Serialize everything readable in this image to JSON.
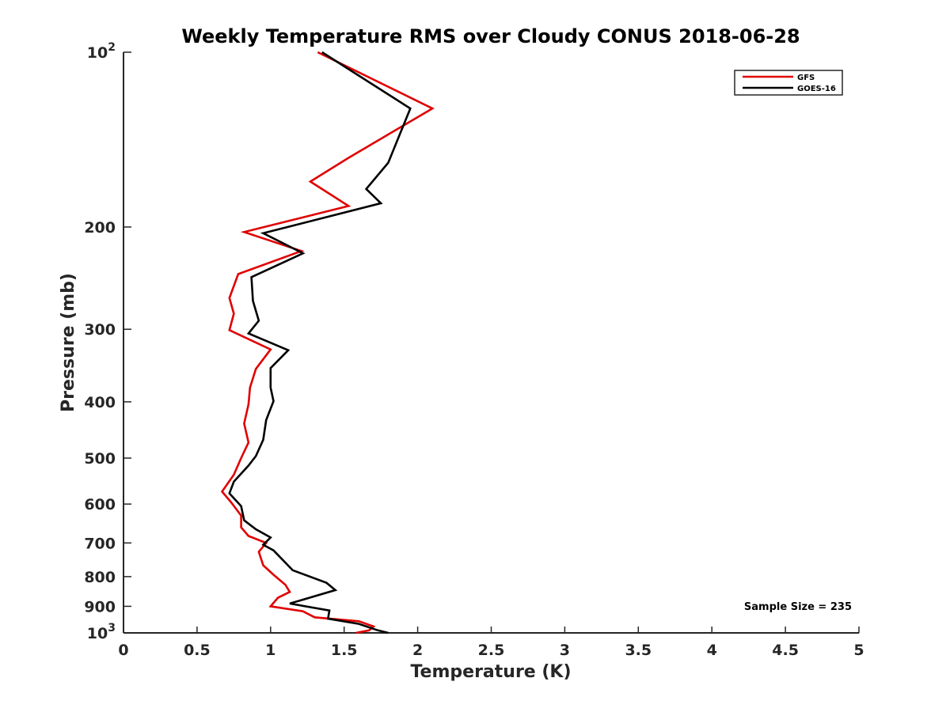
{
  "chart_data": {
    "type": "line",
    "title": "Weekly Temperature RMS over Cloudy CONUS 2018-06-28",
    "xlabel": "Temperature (K)",
    "ylabel": "Pressure (mb)",
    "xlim": [
      0,
      5
    ],
    "ylim": [
      100,
      1000
    ],
    "y_scale": "log",
    "y_reversed": true,
    "x_ticks": [
      "0",
      "0.5",
      "1",
      "1.5",
      "2",
      "2.5",
      "3",
      "3.5",
      "4",
      "4.5",
      "5"
    ],
    "y_ticks": [
      {
        "value": 100,
        "base": "10",
        "exp": "2"
      },
      {
        "value": 200,
        "label": "200"
      },
      {
        "value": 300,
        "label": "300"
      },
      {
        "value": 400,
        "label": "400"
      },
      {
        "value": 500,
        "label": "500"
      },
      {
        "value": 600,
        "label": "600"
      },
      {
        "value": 700,
        "label": "700"
      },
      {
        "value": 800,
        "label": "800"
      },
      {
        "value": 900,
        "label": "900"
      },
      {
        "value": 1000,
        "base": "10",
        "exp": "3"
      }
    ],
    "grid": false,
    "legend_position": "top-right",
    "annotation": "Sample Size = 235",
    "series": [
      {
        "name": "GFS",
        "color": "#e00000",
        "points": [
          [
            1.32,
            100
          ],
          [
            2.1,
            125
          ],
          [
            1.53,
            152
          ],
          [
            1.27,
            167
          ],
          [
            1.53,
            184
          ],
          [
            0.82,
            204
          ],
          [
            1.21,
            220
          ],
          [
            0.78,
            241
          ],
          [
            0.72,
            265
          ],
          [
            0.75,
            282
          ],
          [
            0.72,
            301
          ],
          [
            1.0,
            325
          ],
          [
            0.9,
            351
          ],
          [
            0.86,
            378
          ],
          [
            0.85,
            404
          ],
          [
            0.82,
            436
          ],
          [
            0.85,
            470
          ],
          [
            0.8,
            500
          ],
          [
            0.75,
            534
          ],
          [
            0.67,
            571
          ],
          [
            0.73,
            595
          ],
          [
            0.8,
            628
          ],
          [
            0.8,
            658
          ],
          [
            0.85,
            681
          ],
          [
            0.97,
            700
          ],
          [
            0.92,
            725
          ],
          [
            0.95,
            765
          ],
          [
            1.02,
            794
          ],
          [
            1.1,
            826
          ],
          [
            1.13,
            850
          ],
          [
            1.05,
            870
          ],
          [
            1.0,
            900
          ],
          [
            1.22,
            918
          ],
          [
            1.3,
            940
          ],
          [
            1.6,
            955
          ],
          [
            1.7,
            975
          ],
          [
            1.67,
            990
          ],
          [
            1.58,
            1000
          ]
        ]
      },
      {
        "name": "GOES-16",
        "color": "#000000",
        "points": [
          [
            1.35,
            100
          ],
          [
            1.95,
            125
          ],
          [
            1.8,
            155
          ],
          [
            1.65,
            172
          ],
          [
            1.75,
            182
          ],
          [
            0.95,
            205
          ],
          [
            1.22,
            222
          ],
          [
            0.87,
            244
          ],
          [
            0.88,
            268
          ],
          [
            0.92,
            290
          ],
          [
            0.85,
            305
          ],
          [
            1.12,
            326
          ],
          [
            1.0,
            350
          ],
          [
            1.0,
            378
          ],
          [
            1.02,
            399
          ],
          [
            0.97,
            430
          ],
          [
            0.95,
            465
          ],
          [
            0.9,
            496
          ],
          [
            0.85,
            515
          ],
          [
            0.75,
            549
          ],
          [
            0.72,
            575
          ],
          [
            0.8,
            605
          ],
          [
            0.82,
            640
          ],
          [
            0.9,
            663
          ],
          [
            1.0,
            685
          ],
          [
            0.95,
            705
          ],
          [
            1.02,
            721
          ],
          [
            1.15,
            780
          ],
          [
            1.38,
            820
          ],
          [
            1.44,
            844
          ],
          [
            1.13,
            890
          ],
          [
            1.4,
            915
          ],
          [
            1.39,
            945
          ],
          [
            1.6,
            965
          ],
          [
            1.73,
            990
          ],
          [
            1.8,
            1000
          ]
        ]
      }
    ]
  }
}
